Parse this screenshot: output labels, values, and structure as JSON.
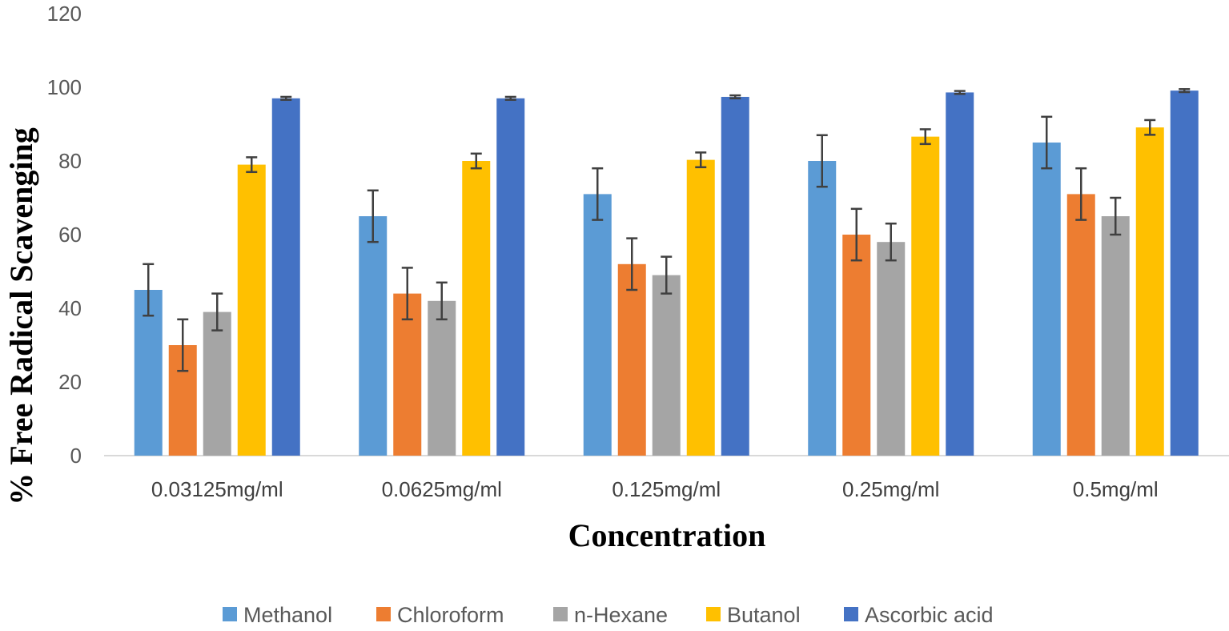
{
  "chart_data": {
    "type": "bar",
    "title": "",
    "xlabel": "Concentration",
    "ylabel": "% Free Radical Scavenging",
    "ylim": [
      0,
      120
    ],
    "yticks": [
      0,
      20,
      40,
      60,
      80,
      100,
      120
    ],
    "grid": false,
    "legend_position": "bottom",
    "categories": [
      "0.03125mg/ml",
      "0.0625mg/ml",
      "0.125mg/ml",
      "0.25mg/ml",
      "0.5mg/ml"
    ],
    "series": [
      {
        "name": "Methanol",
        "color": "#5B9BD5",
        "values": [
          45,
          65,
          71,
          80,
          85
        ],
        "errors": [
          7,
          7,
          7,
          7,
          7
        ]
      },
      {
        "name": "Chloroform",
        "color": "#ED7D31",
        "values": [
          30,
          44,
          52,
          60,
          71
        ],
        "errors": [
          7,
          7,
          7,
          7,
          7
        ]
      },
      {
        "name": "n-Hexane",
        "color": "#A5A5A5",
        "values": [
          39,
          42,
          49,
          58,
          65
        ],
        "errors": [
          5,
          5,
          5,
          5,
          5
        ]
      },
      {
        "name": "Butanol",
        "color": "#FFC000",
        "values": [
          79,
          80,
          80.3,
          86.6,
          89.1
        ],
        "errors": [
          2,
          2,
          2,
          2,
          2
        ]
      },
      {
        "name": "Ascorbic acid",
        "color": "#4472C4",
        "values": [
          97,
          97,
          97.4,
          98.6,
          99.1
        ],
        "errors": [
          0.4,
          0.4,
          0.4,
          0.4,
          0.4
        ]
      }
    ]
  }
}
